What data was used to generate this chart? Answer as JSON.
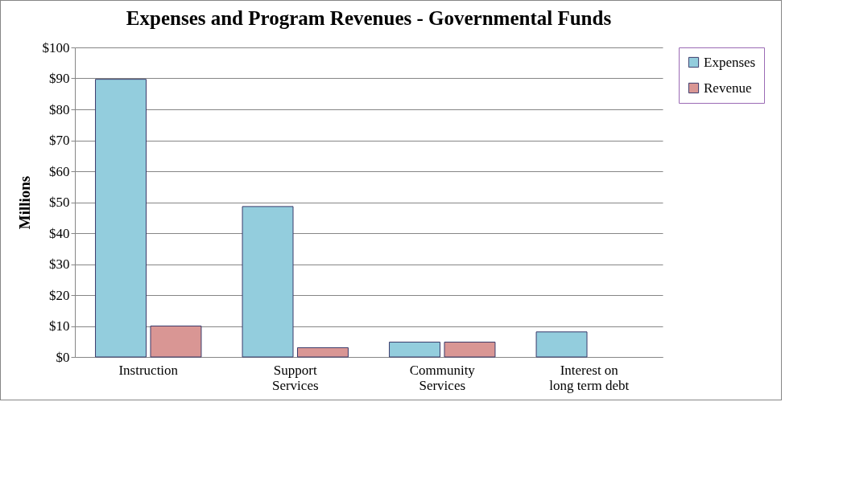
{
  "chart_data": {
    "type": "bar",
    "title": "Expenses and Program Revenues - Governmental Funds",
    "ylabel": "Millions",
    "categories": [
      "Instruction",
      "Support Services",
      "Community Services",
      "Interest on long term debt"
    ],
    "series": [
      {
        "name": "Expenses",
        "color": "#93cddd",
        "values": [
          89.7,
          48.6,
          4.8,
          8.1
        ]
      },
      {
        "name": "Revenue",
        "color": "#d99694",
        "values": [
          10,
          3,
          4.8,
          null
        ]
      }
    ],
    "ylim": [
      0,
      100
    ],
    "yticks": [
      {
        "value": 0,
        "label": "$0"
      },
      {
        "value": 10,
        "label": "$10"
      },
      {
        "value": 20,
        "label": "$20"
      },
      {
        "value": 30,
        "label": "$30"
      },
      {
        "value": 40,
        "label": "$40"
      },
      {
        "value": 50,
        "label": "$50"
      },
      {
        "value": 60,
        "label": "$60"
      },
      {
        "value": 70,
        "label": "$70"
      },
      {
        "value": 80,
        "label": "$80"
      },
      {
        "value": 90,
        "label": "$90"
      },
      {
        "value": 100,
        "label": "$100"
      }
    ],
    "grid": "y",
    "legend": "right"
  }
}
